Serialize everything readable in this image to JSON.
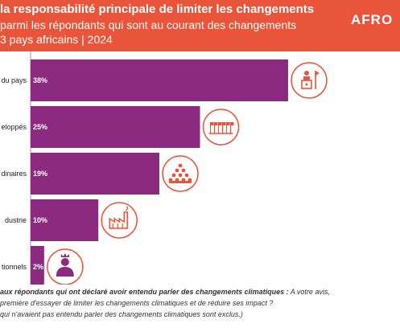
{
  "header": {
    "title": "la responsabilité principale de limiter les changements",
    "subtitle_line1": "parmi les répondants qui sont au courant des changements",
    "subtitle_line2": "3 pays africains | 2024",
    "brand": "AFRO",
    "background_color": "#e8553a"
  },
  "chart_data": {
    "type": "bar",
    "orientation": "horizontal",
    "categories": [
      "du pays",
      "eloppés",
      "dinaires",
      "dustrie",
      "tionnels"
    ],
    "values": [
      38,
      25,
      19,
      10,
      2
    ],
    "value_labels": [
      "38%",
      "25%",
      "19%",
      "10%",
      "2%"
    ],
    "icons": [
      "government-official-icon",
      "flags-icon",
      "crowd-icon",
      "factory-icon",
      "traditional-leader-icon"
    ],
    "xlim": [
      0,
      50
    ],
    "bar_color": "#8b2a7e",
    "icon_color": "#e8553a",
    "grid": false
  },
  "footnote": {
    "line1_bold": "aux répondants qui ont déclaré avoir entendu parler des changements climatiques :",
    "line1_rest": " A votre avis,",
    "line2": "première d'essayer de limiter les changements climatiques et de réduire ses impact ?",
    "line3": "qui n'avaient pas entendu parler des changements climatiques sont exclus.)"
  }
}
